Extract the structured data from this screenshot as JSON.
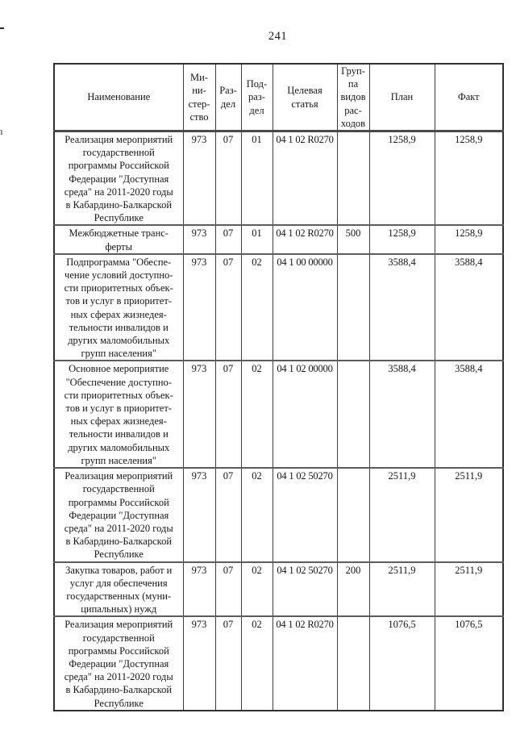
{
  "page": {
    "number": "241"
  },
  "table": {
    "headers": {
      "name": "Наименование",
      "ministry": "Ми-\nни-\nстер-\nство",
      "section": "Раз-\nдел",
      "subsection": "Под-\nраз-\nдел",
      "target_article": "Целевая\nстатья",
      "expense_group": "Груп-\nпа\nвидов\nрас-\nходов",
      "plan": "План",
      "fact": "Факт"
    },
    "rows": [
      {
        "name": "Реализация мероприятий\nгосударственной\nпрограммы Российской\nФедерации \"Доступная\nсреда\" на 2011-2020 годы\nв Кабардино-Балкарской\nРеспублике",
        "ministry": "973",
        "section": "07",
        "subsection": "01",
        "target_article": "04 1 02 R0270",
        "expense_group": "",
        "plan": "1258,9",
        "fact": "1258,9"
      },
      {
        "name": "Межбюджетные транс-\nферты",
        "ministry": "973",
        "section": "07",
        "subsection": "01",
        "target_article": "04 1 02 R0270",
        "expense_group": "500",
        "plan": "1258,9",
        "fact": "1258,9"
      },
      {
        "name": "Подпрограмма \"Обеспе-\nчение условий доступно-\nсти приоритетных объек-\nтов и услуг в приоритет-\nных сферах жизнедея-\nтельности инвалидов и\nдругих маломобильных\nгрупп населения\"",
        "ministry": "973",
        "section": "07",
        "subsection": "02",
        "target_article": "04 1 00 00000",
        "expense_group": "",
        "plan": "3588,4",
        "fact": "3588,4"
      },
      {
        "name": "Основное мероприятие\n\"Обеспечение доступно-\nсти приоритетных объек-\nтов и услуг в приоритет-\nных сферах жизнедея-\nтельности инвалидов и\nдругих маломобильных\nгрупп населения\"",
        "ministry": "973",
        "section": "07",
        "subsection": "02",
        "target_article": "04 1 02 00000",
        "expense_group": "",
        "plan": "3588,4",
        "fact": "3588,4"
      },
      {
        "name": "Реализация мероприятий\nгосударственной\nпрограммы Российской\nФедерации \"Доступная\nсреда\" на 2011-2020 годы\nв Кабардино-Балкарской\nРеспублике",
        "ministry": "973",
        "section": "07",
        "subsection": "02",
        "target_article": "04 1 02 50270",
        "expense_group": "",
        "plan": "2511,9",
        "fact": "2511,9"
      },
      {
        "name": "Закупка товаров, работ и\nуслуг для обеспечения\nгосударственных (муни-\nципальных) нужд",
        "ministry": "973",
        "section": "07",
        "subsection": "02",
        "target_article": "04 1 02 50270",
        "expense_group": "200",
        "plan": "2511,9",
        "fact": "2511,9"
      },
      {
        "name": "Реализация мероприятий\nгосударственной\nпрограммы Российской\nФедерации \"Доступная\nсреда\" на 2011-2020 годы\nв Кабардино-Балкарской\nРеспублике",
        "ministry": "973",
        "section": "07",
        "subsection": "02",
        "target_article": "04 1 02 R0270",
        "expense_group": "",
        "plan": "1076,5",
        "fact": "1076,5"
      }
    ]
  }
}
